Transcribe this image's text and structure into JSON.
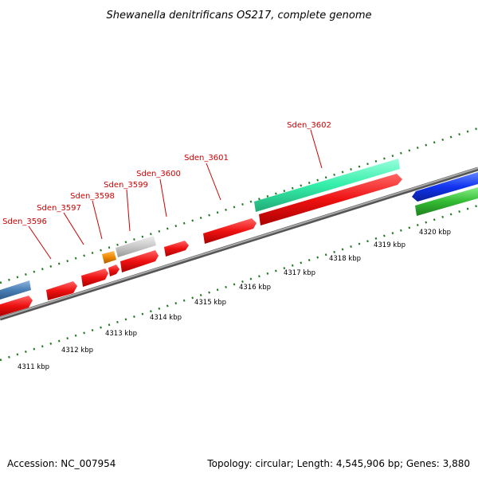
{
  "title": "Shewanella denitrificans OS217, complete genome",
  "footer": {
    "accession": "Accession: NC_007954",
    "summary": "Topology: circular; Length: 4,545,906 bp; Genes: 3,880"
  },
  "colors": {
    "forward_gene": "#ee1111",
    "rrna_teal": "#33eeaa",
    "blue": "#1133ee",
    "green": "#33bb33",
    "steel_blue": "#4a7fb5",
    "orange": "#ee8800",
    "gray": "#c8c8c8",
    "label_red": "#cc0000",
    "tick_green": "#227722",
    "backbone": "#888888"
  },
  "gene_labels": [
    "Sden_3596",
    "Sden_3597",
    "Sden_3598",
    "Sden_3599",
    "Sden_3600",
    "Sden_3601",
    "Sden_3602"
  ],
  "kbp_ticks": [
    "4311 kbp",
    "4312 kbp",
    "4313 kbp",
    "4314 kbp",
    "4315 kbp",
    "4316 kbp",
    "4317 kbp",
    "4318 kbp",
    "4319 kbp",
    "4320 kbp"
  ]
}
